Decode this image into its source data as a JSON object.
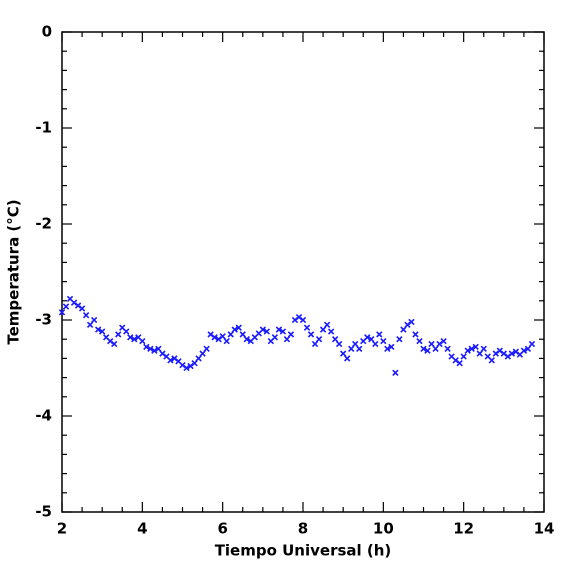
{
  "chart_data": {
    "type": "scatter",
    "x_label": "Tiempo Universal (h)",
    "y_label": "Temperatura (°C)",
    "xlim": [
      2,
      14
    ],
    "ylim": [
      -5,
      0
    ],
    "xticks": [
      2,
      4,
      6,
      8,
      10,
      12,
      14
    ],
    "yticks": [
      0,
      -1,
      -2,
      -3,
      -4,
      -5
    ],
    "color": "#1a1aff",
    "x": [
      2.0,
      2.1,
      2.2,
      2.3,
      2.4,
      2.5,
      2.6,
      2.7,
      2.8,
      2.9,
      3.0,
      3.1,
      3.2,
      3.3,
      3.4,
      3.5,
      3.6,
      3.7,
      3.8,
      3.9,
      4.0,
      4.1,
      4.2,
      4.3,
      4.4,
      4.5,
      4.6,
      4.7,
      4.8,
      4.9,
      5.0,
      5.1,
      5.2,
      5.3,
      5.4,
      5.5,
      5.6,
      5.7,
      5.8,
      5.9,
      6.0,
      6.1,
      6.2,
      6.3,
      6.4,
      6.5,
      6.6,
      6.7,
      6.8,
      6.9,
      7.0,
      7.1,
      7.2,
      7.3,
      7.4,
      7.5,
      7.6,
      7.7,
      7.8,
      7.9,
      8.0,
      8.1,
      8.2,
      8.3,
      8.4,
      8.5,
      8.6,
      8.7,
      8.8,
      8.9,
      9.0,
      9.1,
      9.2,
      9.3,
      9.4,
      9.5,
      9.6,
      9.7,
      9.8,
      9.9,
      10.0,
      10.1,
      10.2,
      10.3,
      10.4,
      10.5,
      10.6,
      10.7,
      10.8,
      10.9,
      11.0,
      11.1,
      11.2,
      11.3,
      11.4,
      11.5,
      11.6,
      11.7,
      11.8,
      11.9,
      12.0,
      12.1,
      12.2,
      12.3,
      12.4,
      12.5,
      12.6,
      12.7,
      12.8,
      12.9,
      13.0,
      13.1,
      13.2,
      13.3,
      13.4,
      13.5,
      13.6,
      13.7
    ],
    "values": [
      -2.92,
      -2.86,
      -2.78,
      -2.82,
      -2.85,
      -2.88,
      -2.95,
      -3.05,
      -3.0,
      -3.1,
      -3.12,
      -3.18,
      -3.22,
      -3.25,
      -3.15,
      -3.08,
      -3.12,
      -3.18,
      -3.2,
      -3.18,
      -3.22,
      -3.28,
      -3.3,
      -3.32,
      -3.3,
      -3.35,
      -3.38,
      -3.42,
      -3.4,
      -3.43,
      -3.47,
      -3.5,
      -3.48,
      -3.45,
      -3.4,
      -3.35,
      -3.3,
      -3.15,
      -3.18,
      -3.2,
      -3.17,
      -3.22,
      -3.15,
      -3.1,
      -3.08,
      -3.15,
      -3.2,
      -3.22,
      -3.18,
      -3.14,
      -3.1,
      -3.12,
      -3.22,
      -3.18,
      -3.1,
      -3.12,
      -3.2,
      -3.15,
      -3.0,
      -2.97,
      -3.0,
      -3.08,
      -3.15,
      -3.25,
      -3.2,
      -3.1,
      -3.05,
      -3.12,
      -3.2,
      -3.25,
      -3.35,
      -3.4,
      -3.3,
      -3.25,
      -3.3,
      -3.22,
      -3.18,
      -3.2,
      -3.25,
      -3.15,
      -3.22,
      -3.3,
      -3.28,
      -3.55,
      -3.2,
      -3.1,
      -3.05,
      -3.02,
      -3.15,
      -3.22,
      -3.3,
      -3.32,
      -3.25,
      -3.3,
      -3.25,
      -3.22,
      -3.3,
      -3.38,
      -3.42,
      -3.45,
      -3.38,
      -3.32,
      -3.3,
      -3.28,
      -3.35,
      -3.3,
      -3.38,
      -3.42,
      -3.35,
      -3.32,
      -3.35,
      -3.38,
      -3.35,
      -3.33,
      -3.36,
      -3.32,
      -3.3,
      -3.25
    ]
  }
}
